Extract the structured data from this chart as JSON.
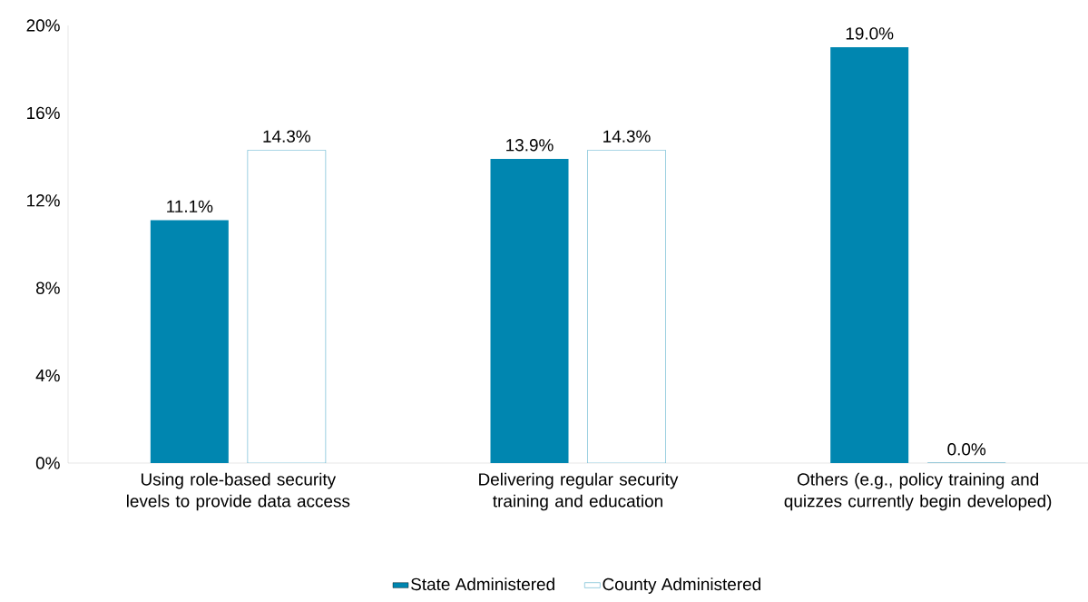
{
  "chart_data": {
    "type": "bar",
    "categories": [
      "Using role-based security levels to provide data access",
      "Delivering regular security training and education",
      "Others (e.g., policy training and quizzes currently begin developed)"
    ],
    "series": [
      {
        "name": "State Administered",
        "color": "#0086b0",
        "values": [
          11.1,
          13.9,
          19.0
        ],
        "value_labels": [
          "11.1%",
          "13.9%",
          "19.0%"
        ]
      },
      {
        "name": "County Administered",
        "color": "#0086b0",
        "values": [
          14.3,
          14.3,
          0.0
        ],
        "value_labels": [
          "14.3%",
          "14.3%",
          "0.0%"
        ]
      }
    ],
    "ylim": [
      0,
      20
    ],
    "yticks": [
      {
        "value": 0,
        "label": "0%"
      },
      {
        "value": 4,
        "label": "4%"
      },
      {
        "value": 8,
        "label": "8%"
      },
      {
        "value": 12,
        "label": "12%"
      },
      {
        "value": 16,
        "label": "16%"
      },
      {
        "value": 20,
        "label": "20%"
      }
    ],
    "grid": false,
    "legend": "bottom"
  }
}
